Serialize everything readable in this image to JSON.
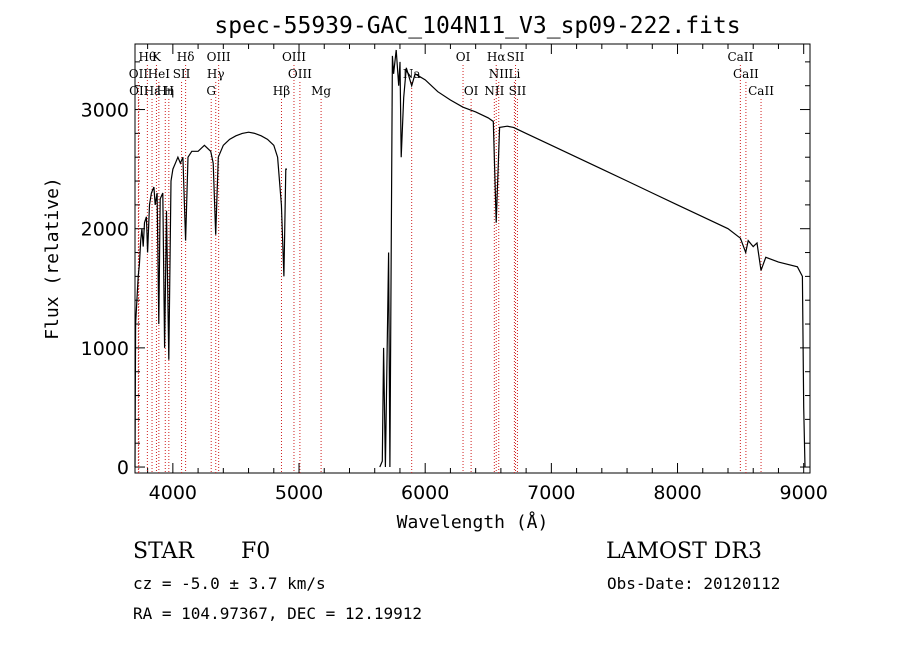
{
  "chart_data": {
    "type": "line",
    "title": "spec-55939-GAC_104N11_V3_sp09-222.fits",
    "xlabel": "Wavelength (Å)",
    "ylabel": "Flux (relative)",
    "xlim": [
      3700,
      9050
    ],
    "ylim": [
      -50,
      3550
    ],
    "x_ticks": [
      4000,
      5000,
      6000,
      7000,
      8000,
      9000
    ],
    "y_ticks": [
      0,
      1000,
      2000,
      3000
    ],
    "series": [
      {
        "name": "flux",
        "points": [
          [
            3700,
            0
          ],
          [
            3705,
            1200
          ],
          [
            3715,
            1400
          ],
          [
            3725,
            1600
          ],
          [
            3735,
            1700
          ],
          [
            3745,
            1900
          ],
          [
            3755,
            2000
          ],
          [
            3765,
            1850
          ],
          [
            3775,
            2050
          ],
          [
            3790,
            2100
          ],
          [
            3800,
            1800
          ],
          [
            3815,
            2200
          ],
          [
            3830,
            2300
          ],
          [
            3850,
            2350
          ],
          [
            3860,
            2200
          ],
          [
            3875,
            2300
          ],
          [
            3889,
            1200
          ],
          [
            3900,
            2250
          ],
          [
            3920,
            2300
          ],
          [
            3935,
            1000
          ],
          [
            3950,
            2150
          ],
          [
            3968,
            900
          ],
          [
            3985,
            2400
          ],
          [
            4000,
            2500
          ],
          [
            4020,
            2550
          ],
          [
            4040,
            2600
          ],
          [
            4060,
            2550
          ],
          [
            4080,
            2600
          ],
          [
            4101,
            1900
          ],
          [
            4120,
            2600
          ],
          [
            4150,
            2650
          ],
          [
            4200,
            2650
          ],
          [
            4250,
            2700
          ],
          [
            4300,
            2650
          ],
          [
            4320,
            2550
          ],
          [
            4340,
            1950
          ],
          [
            4360,
            2600
          ],
          [
            4400,
            2700
          ],
          [
            4450,
            2750
          ],
          [
            4500,
            2780
          ],
          [
            4550,
            2800
          ],
          [
            4600,
            2810
          ],
          [
            4650,
            2800
          ],
          [
            4700,
            2780
          ],
          [
            4750,
            2750
          ],
          [
            4800,
            2700
          ],
          [
            4830,
            2600
          ],
          [
            4860,
            2200
          ],
          [
            4880,
            1600
          ],
          [
            4895,
            2500
          ],
          [
            4905,
            2500
          ],
          [
            5640,
            0
          ],
          [
            5660,
            50
          ],
          [
            5670,
            1000
          ],
          [
            5685,
            0
          ],
          [
            5710,
            1800
          ],
          [
            5720,
            0
          ],
          [
            5740,
            3450
          ],
          [
            5750,
            3300
          ],
          [
            5770,
            3500
          ],
          [
            5790,
            3200
          ],
          [
            5800,
            3400
          ],
          [
            5810,
            2600
          ],
          [
            5830,
            3100
          ],
          [
            5850,
            3350
          ],
          [
            5893,
            3200
          ],
          [
            5920,
            3300
          ],
          [
            6000,
            3250
          ],
          [
            6100,
            3150
          ],
          [
            6200,
            3080
          ],
          [
            6300,
            3020
          ],
          [
            6400,
            2980
          ],
          [
            6500,
            2930
          ],
          [
            6540,
            2900
          ],
          [
            6563,
            2050
          ],
          [
            6590,
            2850
          ],
          [
            6650,
            2860
          ],
          [
            6700,
            2850
          ],
          [
            6800,
            2800
          ],
          [
            7000,
            2700
          ],
          [
            7200,
            2600
          ],
          [
            7400,
            2500
          ],
          [
            7600,
            2400
          ],
          [
            7800,
            2300
          ],
          [
            8000,
            2200
          ],
          [
            8200,
            2100
          ],
          [
            8400,
            2000
          ],
          [
            8498,
            1920
          ],
          [
            8540,
            1800
          ],
          [
            8560,
            1900
          ],
          [
            8600,
            1850
          ],
          [
            8630,
            1880
          ],
          [
            8662,
            1650
          ],
          [
            8700,
            1760
          ],
          [
            8800,
            1720
          ],
          [
            8950,
            1680
          ],
          [
            8990,
            1600
          ],
          [
            9000,
            500
          ],
          [
            9010,
            0
          ]
        ]
      }
    ],
    "line_markers": [
      {
        "label": "Hθ",
        "x": 3798,
        "row": 1
      },
      {
        "label": "K",
        "x": 3870,
        "row": 1
      },
      {
        "label": "Hδ",
        "x": 4101,
        "row": 1
      },
      {
        "label": "OIII",
        "x": 4363,
        "row": 1
      },
      {
        "label": "OIII",
        "x": 4960,
        "row": 1
      },
      {
        "label": "OI",
        "x": 6300,
        "row": 1
      },
      {
        "label": "Hα",
        "x": 6563,
        "row": 1
      },
      {
        "label": "SII",
        "x": 6716,
        "row": 1
      },
      {
        "label": "CaII",
        "x": 8498,
        "row": 1
      },
      {
        "label": "OII",
        "x": 3727,
        "row": 2
      },
      {
        "label": "HeI",
        "x": 3889,
        "row": 2
      },
      {
        "label": "SII",
        "x": 4069,
        "row": 2
      },
      {
        "label": "Hγ",
        "x": 4340,
        "row": 2
      },
      {
        "label": "OIII",
        "x": 5007,
        "row": 2
      },
      {
        "label": "Na",
        "x": 5893,
        "row": 2
      },
      {
        "label": "NII",
        "x": 6583,
        "row": 2
      },
      {
        "label": "Li",
        "x": 6707,
        "row": 2
      },
      {
        "label": "CaII",
        "x": 8542,
        "row": 2
      },
      {
        "label": "OII",
        "x": 3730,
        "row": 3
      },
      {
        "label": "Hε",
        "x": 3835,
        "row": 3
      },
      {
        "label": "Hη",
        "x": 3940,
        "row": 3
      },
      {
        "label": "H",
        "x": 3968,
        "row": 3
      },
      {
        "label": "G",
        "x": 4304,
        "row": 3
      },
      {
        "label": "Hβ",
        "x": 4861,
        "row": 3
      },
      {
        "label": "Mg",
        "x": 5175,
        "row": 3
      },
      {
        "label": "OI",
        "x": 6364,
        "row": 3
      },
      {
        "label": "NII",
        "x": 6548,
        "row": 3
      },
      {
        "label": "SII",
        "x": 6731,
        "row": 3
      },
      {
        "label": "CaII",
        "x": 8662,
        "row": 3
      }
    ]
  },
  "info": {
    "object_class": "STAR",
    "subclass": "F0",
    "survey": "LAMOST DR3",
    "cz": "cz = -5.0 ± 3.7 km/s",
    "obs_date": "Obs-Date: 20120112",
    "coords": "RA = 104.97367, DEC =  12.19912"
  }
}
